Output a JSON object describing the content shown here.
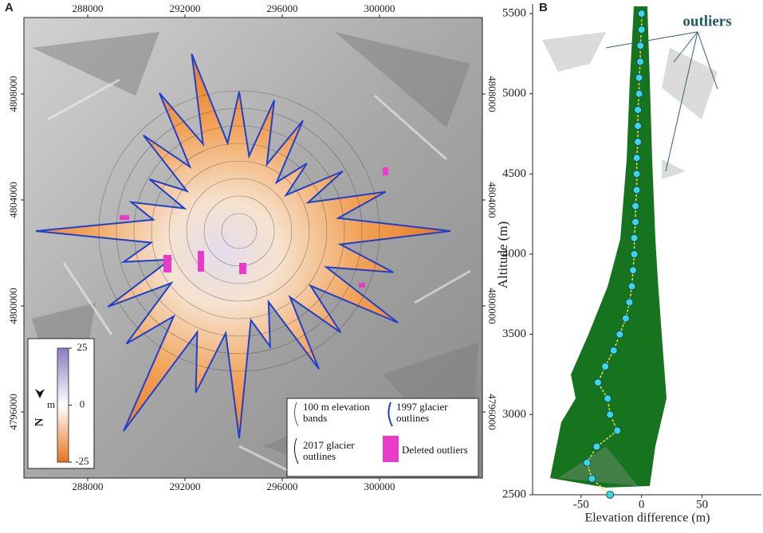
{
  "chart_data": [
    {
      "type": "map",
      "panel_label": "A",
      "xlim": [
        285377,
        304230
      ],
      "ylim": [
        4793504,
        4810887
      ],
      "xticks": [
        288000,
        292000,
        296000,
        300000
      ],
      "yticks": [
        4796000,
        4800000,
        4804000,
        4808000
      ],
      "north_label": "N",
      "colorbar": {
        "label": "m",
        "clim": [
          -25,
          25
        ],
        "ticks": [
          25,
          0,
          -25
        ],
        "colors": [
          "#e8731a",
          "#ffffff",
          "#8c7bbf"
        ]
      },
      "legend": [
        "100 m elevation bands",
        "2017 glacier outlines",
        "1997 glacier outlines",
        "Deleted outliers"
      ],
      "outlier_color": "#e83cc8",
      "outline_1997_color": "#1f3fcf"
    },
    {
      "type": "scatter",
      "panel_label": "B",
      "annotation": "outliers",
      "xlabel": "Elevation difference (m)",
      "ylabel": "Altitude (m)",
      "xlim": [
        -90,
        99
      ],
      "ylim": [
        2500,
        5560
      ],
      "xticks": [
        -50,
        0,
        50
      ],
      "yticks": [
        2500,
        3000,
        3500,
        4000,
        4500,
        5000,
        5500
      ],
      "color": "#3ad6e6",
      "line_color": "#e8e050",
      "band_color": "#0a6b12",
      "x": [
        -26,
        -41,
        -45,
        -37,
        -20,
        -26,
        -28,
        -36,
        -30,
        -23,
        -18,
        -13,
        -10,
        -8,
        -7,
        -6,
        -6,
        -5,
        -5,
        -4,
        -4,
        -4,
        -3,
        -3,
        -3,
        -2,
        -2,
        -1,
        -1,
        0,
        0
      ],
      "y": [
        2500,
        2600,
        2700,
        2800,
        2900,
        3000,
        3100,
        3200,
        3300,
        3400,
        3500,
        3600,
        3700,
        3800,
        3900,
        4000,
        4100,
        4200,
        4300,
        4400,
        4500,
        4600,
        4700,
        4800,
        4900,
        5000,
        5100,
        5200,
        5300,
        5400,
        5500
      ]
    }
  ]
}
